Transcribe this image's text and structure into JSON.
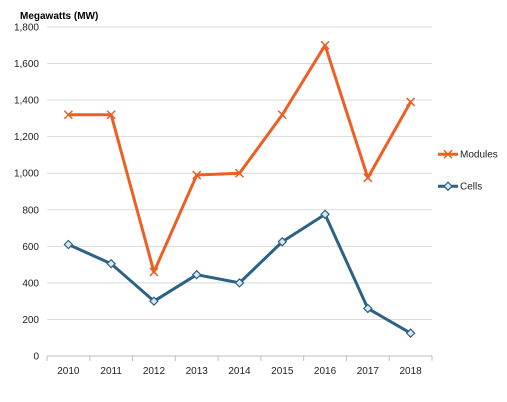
{
  "chart_data": {
    "type": "line",
    "title": "",
    "xlabel": "",
    "ylabel": "Megawatts (MW)",
    "x": [
      "2010",
      "2011",
      "2012",
      "2013",
      "2014",
      "2015",
      "2016",
      "2017",
      "2018"
    ],
    "ylim": [
      0,
      1800
    ],
    "yticks": [
      0,
      200,
      400,
      600,
      800,
      1000,
      1200,
      1400,
      1600,
      1800
    ],
    "ytick_labels": [
      "0",
      "200",
      "400",
      "600",
      "800",
      "1,000",
      "1,200",
      "1,400",
      "1,600",
      "1,800"
    ],
    "grid": true,
    "legend_position": "right",
    "series": [
      {
        "name": "Modules",
        "color": "#ED5F22",
        "marker": "x",
        "values": [
          1320,
          1320,
          460,
          990,
          1000,
          1320,
          1700,
          975,
          1390
        ]
      },
      {
        "name": "Cells",
        "color": "#2C6284",
        "marker": "diamond",
        "values": [
          610,
          505,
          300,
          445,
          400,
          625,
          775,
          260,
          125
        ]
      }
    ]
  }
}
